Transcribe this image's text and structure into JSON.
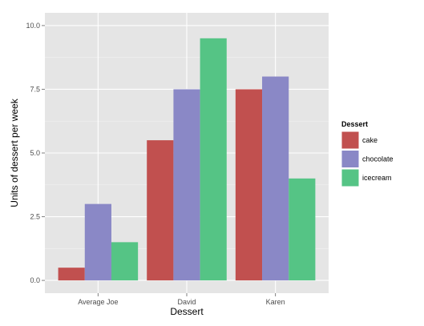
{
  "chart_data": {
    "type": "bar",
    "layout": "grouped",
    "title": "",
    "xlabel": "Dessert",
    "ylabel": "Units of dessert per week",
    "categories": [
      "Average Joe",
      "David",
      "Karen"
    ],
    "series": [
      {
        "name": "cake",
        "values": [
          0.5,
          5.5,
          7.5
        ],
        "color": "#C1504F"
      },
      {
        "name": "chocolate",
        "values": [
          3.0,
          7.5,
          8.0
        ],
        "color": "#8A88C6"
      },
      {
        "name": "icecream",
        "values": [
          1.5,
          9.5,
          4.0
        ],
        "color": "#55C485"
      }
    ],
    "ylim": [
      -0.5,
      10.5
    ],
    "yticks": [
      0.0,
      2.5,
      5.0,
      7.5,
      10.0
    ],
    "ytick_labels": [
      "0.0",
      "2.5",
      "5.0",
      "7.5",
      "10.0"
    ],
    "legend": {
      "title": "Dessert",
      "position": "right"
    },
    "grid": true,
    "panel_background": "#E5E5E5",
    "grid_color": "#FFFFFF",
    "minor_grid_color": "#F2F2F2"
  }
}
